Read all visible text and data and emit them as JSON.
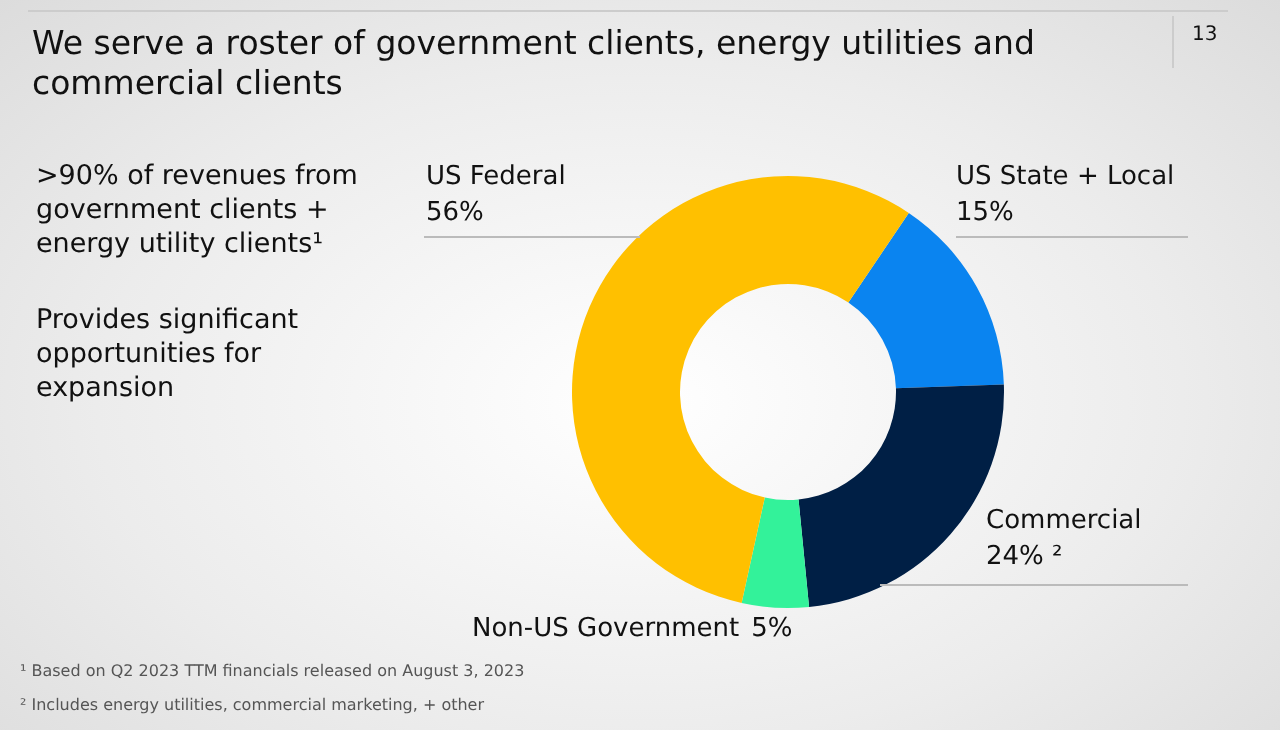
{
  "chart_data": {
    "type": "donut",
    "title": "We serve a roster of government clients, energy utilities and commercial clients",
    "categories": [
      "US State + Local",
      "Commercial",
      "Non-US Government",
      "US Federal"
    ],
    "values": [
      15,
      24,
      5,
      56
    ],
    "value_labels": [
      "15%",
      "24% ²",
      "5%",
      "56%"
    ],
    "colors": [
      "#0a84f0",
      "#001f45",
      "#33f29a",
      "#ffc000"
    ],
    "annotations": [
      "13",
      ">90% of revenues from government clients + energy utility clients¹",
      "Provides significant opportunities for expansion",
      "¹ Based on Q2 2023 TTM financials released on August 3, 2023",
      "² Includes energy utilities, commercial marketing, + other"
    ]
  }
}
